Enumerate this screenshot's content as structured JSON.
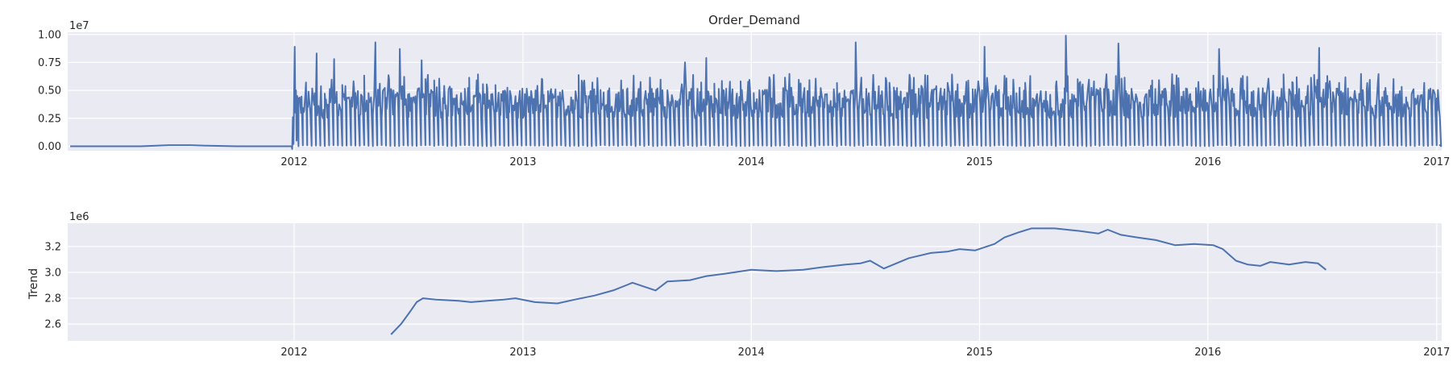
{
  "chart_data": [
    {
      "type": "line",
      "title": "Order_Demand",
      "xlabel": "",
      "ylabel": "",
      "y_offset_label": "1e7",
      "x_ticks": [
        "2012",
        "2013",
        "2014",
        "2015",
        "2016",
        "2017"
      ],
      "y_ticks": [
        "0.00",
        "0.25",
        "0.50",
        "0.75",
        "1.00"
      ],
      "xlim": [
        "2011-01-04",
        "2017-01-09"
      ],
      "ylim": [
        -0.04,
        1.02
      ],
      "y_unit": "1e7",
      "grid": true,
      "line_color": "#4C72B0",
      "background": "#EAEAF2",
      "series": [
        {
          "x": [
            "2011-01-08",
            "2011-03-01",
            "2011-05-01",
            "2011-06-15",
            "2011-07-01",
            "2011-07-20",
            "2011-08-15",
            "2011-10-01",
            "2011-12-01",
            "2011-12-28",
            "2011-12-29",
            "2011-12-30",
            "2011-12-31",
            "2012-01-02",
            "2012-01-03",
            "2012-01-04",
            "2012-01-05",
            "2012-01-06",
            "2012-01-08"
          ],
          "values": [
            0.0,
            0.0,
            0.0,
            0.01,
            0.01,
            0.01,
            0.005,
            0.0,
            0.0,
            0.0,
            -0.025,
            0.26,
            0.02,
            0.89,
            0.3,
            0.5,
            0.05,
            0.45,
            0.0
          ]
        }
      ],
      "pattern": {
        "start": "2012-01-08",
        "end": "2017-01-04",
        "base_range": [
          0.25,
          0.5
        ],
        "troughs": 0.0,
        "peaks": [
          {
            "x": "2012-02-06",
            "value": 0.83
          },
          {
            "x": "2012-03-05",
            "value": 0.78
          },
          {
            "x": "2012-05-10",
            "value": 0.93
          },
          {
            "x": "2012-06-18",
            "value": 0.87
          },
          {
            "x": "2012-07-23",
            "value": 0.77
          },
          {
            "x": "2013-09-18",
            "value": 0.75
          },
          {
            "x": "2013-10-22",
            "value": 0.79
          },
          {
            "x": "2014-06-18",
            "value": 0.93
          },
          {
            "x": "2015-01-10",
            "value": 0.89
          },
          {
            "x": "2015-05-20",
            "value": 0.99
          },
          {
            "x": "2015-08-12",
            "value": 0.92
          },
          {
            "x": "2016-01-20",
            "value": 0.87
          },
          {
            "x": "2016-06-28",
            "value": 0.88
          }
        ]
      }
    },
    {
      "type": "line",
      "title": "",
      "xlabel": "",
      "ylabel": "Trend",
      "y_offset_label": "1e6",
      "x_ticks": [
        "2012",
        "2013",
        "2014",
        "2015",
        "2016",
        "2017"
      ],
      "y_ticks": [
        "2.6",
        "2.8",
        "3.0",
        "3.2"
      ],
      "xlim": [
        "2011-01-04",
        "2017-01-09"
      ],
      "ylim": [
        2.47,
        3.38
      ],
      "y_unit": "1e6",
      "grid": true,
      "line_color": "#4C72B0",
      "background": "#EAEAF2",
      "series": [
        {
          "name": "Trend",
          "x": [
            "2012-06-04",
            "2012-06-20",
            "2012-07-05",
            "2012-07-15",
            "2012-07-25",
            "2012-08-15",
            "2012-09-20",
            "2012-10-10",
            "2012-11-05",
            "2012-12-01",
            "2012-12-20",
            "2013-01-20",
            "2013-02-25",
            "2013-03-25",
            "2013-04-25",
            "2013-05-25",
            "2013-06-15",
            "2013-06-25",
            "2013-08-01",
            "2013-08-20",
            "2013-09-25",
            "2013-10-20",
            "2013-11-20",
            "2014-01-01",
            "2014-02-10",
            "2014-03-25",
            "2014-04-25",
            "2014-06-01",
            "2014-06-25",
            "2014-07-10",
            "2014-08-01",
            "2014-09-10",
            "2014-10-15",
            "2014-11-10",
            "2014-11-30",
            "2014-12-25",
            "2015-01-25",
            "2015-02-10",
            "2015-03-05",
            "2015-03-25",
            "2015-05-01",
            "2015-06-10",
            "2015-07-10",
            "2015-07-25",
            "2015-08-15",
            "2015-09-10",
            "2015-10-10",
            "2015-11-10",
            "2015-12-10",
            "2016-01-10",
            "2016-01-25",
            "2016-02-15",
            "2016-03-05",
            "2016-03-25",
            "2016-04-10",
            "2016-05-10",
            "2016-06-05",
            "2016-06-25",
            "2016-07-08"
          ],
          "values": [
            2.52,
            2.6,
            2.7,
            2.77,
            2.8,
            2.79,
            2.78,
            2.77,
            2.78,
            2.79,
            2.8,
            2.77,
            2.76,
            2.79,
            2.82,
            2.86,
            2.9,
            2.92,
            2.86,
            2.93,
            2.94,
            2.97,
            2.99,
            3.02,
            3.01,
            3.02,
            3.04,
            3.06,
            3.07,
            3.09,
            3.03,
            3.11,
            3.15,
            3.16,
            3.18,
            3.17,
            3.22,
            3.27,
            3.31,
            3.34,
            3.34,
            3.32,
            3.3,
            3.33,
            3.29,
            3.27,
            3.25,
            3.21,
            3.22,
            3.21,
            3.18,
            3.09,
            3.06,
            3.05,
            3.08,
            3.06,
            3.08,
            3.07,
            3.02
          ]
        }
      ]
    }
  ]
}
